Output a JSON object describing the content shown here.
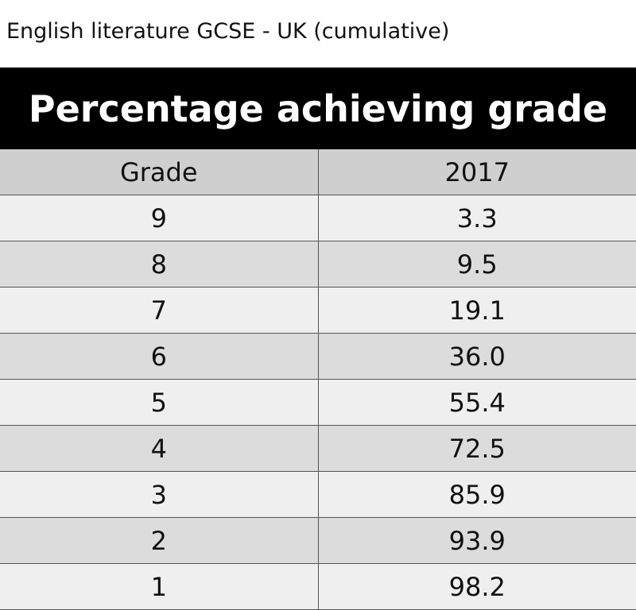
{
  "title": "English literature GCSE - UK (cumulative)",
  "table": {
    "caption": "Percentage achieving grade",
    "header": [
      "Grade",
      "2017"
    ],
    "rows": [
      [
        "9",
        "3.3"
      ],
      [
        "8",
        "9.5"
      ],
      [
        "7",
        "19.1"
      ],
      [
        "6",
        "36.0"
      ],
      [
        "5",
        "55.4"
      ],
      [
        "4",
        "72.5"
      ],
      [
        "3",
        "85.9"
      ],
      [
        "2",
        "93.9"
      ],
      [
        "1",
        "98.2"
      ]
    ]
  }
}
